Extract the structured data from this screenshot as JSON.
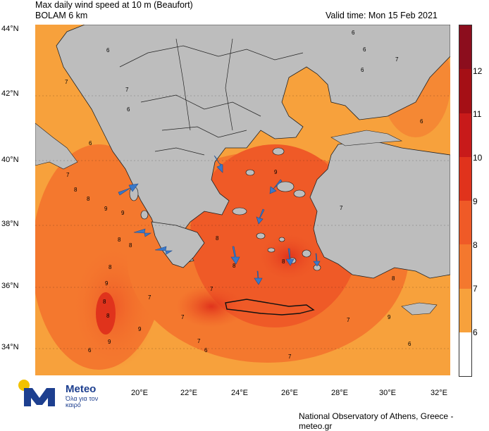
{
  "header": {
    "title": "Max daily wind speed at 10 m (Beaufort)",
    "model": "BOLAM 6 km",
    "valid_time": "Valid time: Mon 15 Feb 2021"
  },
  "footer": {
    "credit": "National Observatory of Athens, Greece - meteo.gr"
  },
  "logo": {
    "name": "Meteo",
    "tagline": "Όλα για τον καιρό"
  },
  "axes": {
    "lat_labels": [
      "44°N",
      "42°N",
      "40°N",
      "38°N",
      "36°N",
      "34°N"
    ],
    "lon_labels": [
      "20°E",
      "22°E",
      "24°E",
      "26°E",
      "28°E",
      "30°E",
      "32°E"
    ]
  },
  "colorbar": {
    "labels": [
      "12",
      "11",
      "10",
      "9",
      "8",
      "7",
      "6"
    ],
    "colors": [
      "#8c0d1d",
      "#a50f15",
      "#c81a1a",
      "#e0331c",
      "#ef5a27",
      "#f4782e",
      "#f7a13c",
      "#ffffff"
    ]
  },
  "map": {
    "sea_color": "#f39a3c",
    "land_color": "#bdbdbd",
    "contour_labels": [
      "6",
      "7",
      "7",
      "6",
      "6",
      "7",
      "6",
      "8",
      "8",
      "9",
      "9",
      "8",
      "8",
      "8",
      "9",
      "8",
      "8",
      "9",
      "9",
      "9",
      "8",
      "8",
      "7",
      "7",
      "7",
      "7",
      "6",
      "6",
      "7",
      "6",
      "7",
      "8",
      "9",
      "8",
      "7",
      "6",
      "6",
      "7",
      "6"
    ],
    "wind_arrows": [
      "arrow-ionian-west",
      "arrow-ionian-1",
      "arrow-ionian-2",
      "arrow-n-aegean",
      "arrow-ne-aegean",
      "arrow-c-aegean",
      "arrow-cyclades-1",
      "arrow-cyclades-2",
      "arrow-dodecanese",
      "arrow-s-aegean"
    ]
  }
}
